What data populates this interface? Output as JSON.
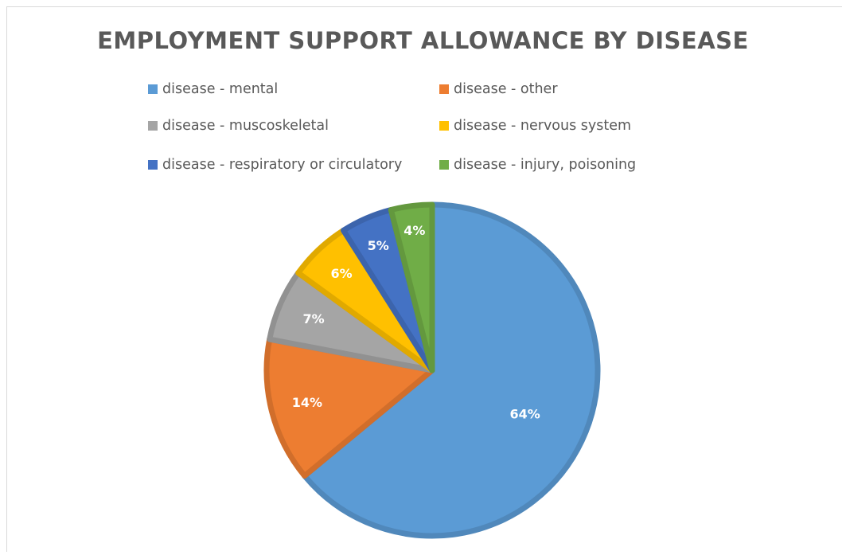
{
  "chart_data": {
    "type": "pie",
    "title": "EMPLOYMENT SUPPORT ALLOWANCE BY DISEASE",
    "categories": [
      "disease - mental",
      "disease - other",
      "disease - muscoskeletal",
      "disease - nervous system",
      "disease - respiratory or circulatory",
      "disease - injury, poisoning"
    ],
    "values": [
      64,
      14,
      7,
      6,
      5,
      4
    ],
    "labels": [
      "64%",
      "14%",
      "7%",
      "6%",
      "5%",
      "4%"
    ],
    "colors": [
      "#5b9bd5",
      "#ed7d31",
      "#a5a5a5",
      "#ffc000",
      "#4472c4",
      "#70ad47"
    ],
    "legend_position": "top",
    "start": "12 o'clock",
    "direction": "clockwise"
  }
}
